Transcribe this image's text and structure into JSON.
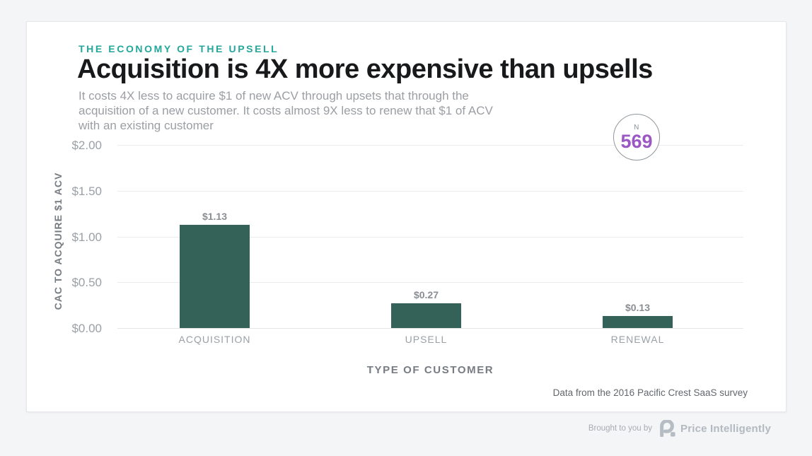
{
  "page": {
    "eyebrow": "THE ECONOMY OF THE UPSELL",
    "title": "Acquisition is 4X more expensive than upsells",
    "subtitle": "It costs 4X less to acquire $1 of new ACV through upsets that through the acquisition of a new customer. It costs almost 9X less to renew that $1 of ACV with an existing customer",
    "footnote": "Data from the 2016 Pacific Crest SaaS survey",
    "footer": {
      "brought_by": "Brought to you by",
      "brand": "Price Intelligently",
      "logo_icon": "price-intelligently-p-mark"
    }
  },
  "sample_badge": {
    "label": "N",
    "value": "569",
    "value_color": "#9b57c3"
  },
  "chart_data": {
    "type": "bar",
    "categories": [
      "ACQUISITION",
      "UPSELL",
      "RENEWAL"
    ],
    "values": [
      1.13,
      0.27,
      0.13
    ],
    "value_labels": [
      "$1.13",
      "$0.27",
      "$0.13"
    ],
    "title": "Acquisition is 4X more expensive than upsells",
    "xlabel": "TYPE OF CUSTOMER",
    "ylabel": "CAC TO ACQUIRE $1 ACV",
    "ylim": [
      0,
      2
    ],
    "yticks": [
      "$0.00",
      "$0.50",
      "$1.00",
      "$1.50",
      "$2.00"
    ],
    "grid": true,
    "legend": "none",
    "sample_size": 569,
    "colors": {
      "bar": "#346158",
      "accent_teal": "#22a79a",
      "sample_purple": "#9b57c3"
    }
  }
}
